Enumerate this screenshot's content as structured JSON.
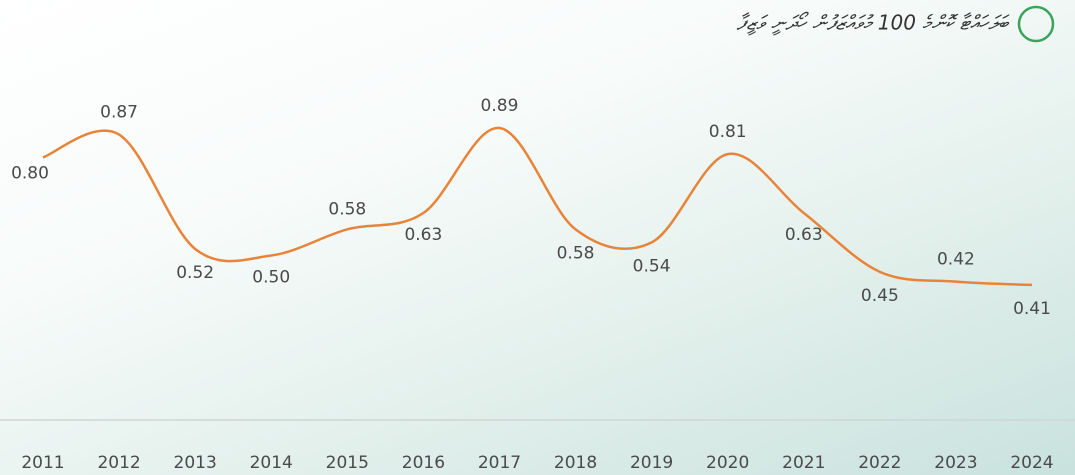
{
  "chart_data": {
    "type": "line",
    "title": "ބަލަހައްޓާ ކޮންމެ 100 މުވައްޒަފުން ހޯދަނީ ވަޒީފާ",
    "categories": [
      "2011",
      "2012",
      "2013",
      "2014",
      "2015",
      "2016",
      "2017",
      "2018",
      "2019",
      "2020",
      "2021",
      "2022",
      "2023",
      "2024"
    ],
    "values": [
      0.8,
      0.87,
      0.52,
      0.5,
      0.58,
      0.63,
      0.89,
      0.58,
      0.54,
      0.81,
      0.63,
      0.45,
      0.42,
      0.41
    ],
    "value_labels": [
      "0.80",
      "0.87",
      "0.52",
      "0.50",
      "0.58",
      "0.63",
      "0.89",
      "0.58",
      "0.54",
      "0.81",
      "0.63",
      "0.45",
      "0.42",
      "0.41"
    ],
    "color": "#e8843a",
    "ylim": [
      0,
      1
    ]
  }
}
